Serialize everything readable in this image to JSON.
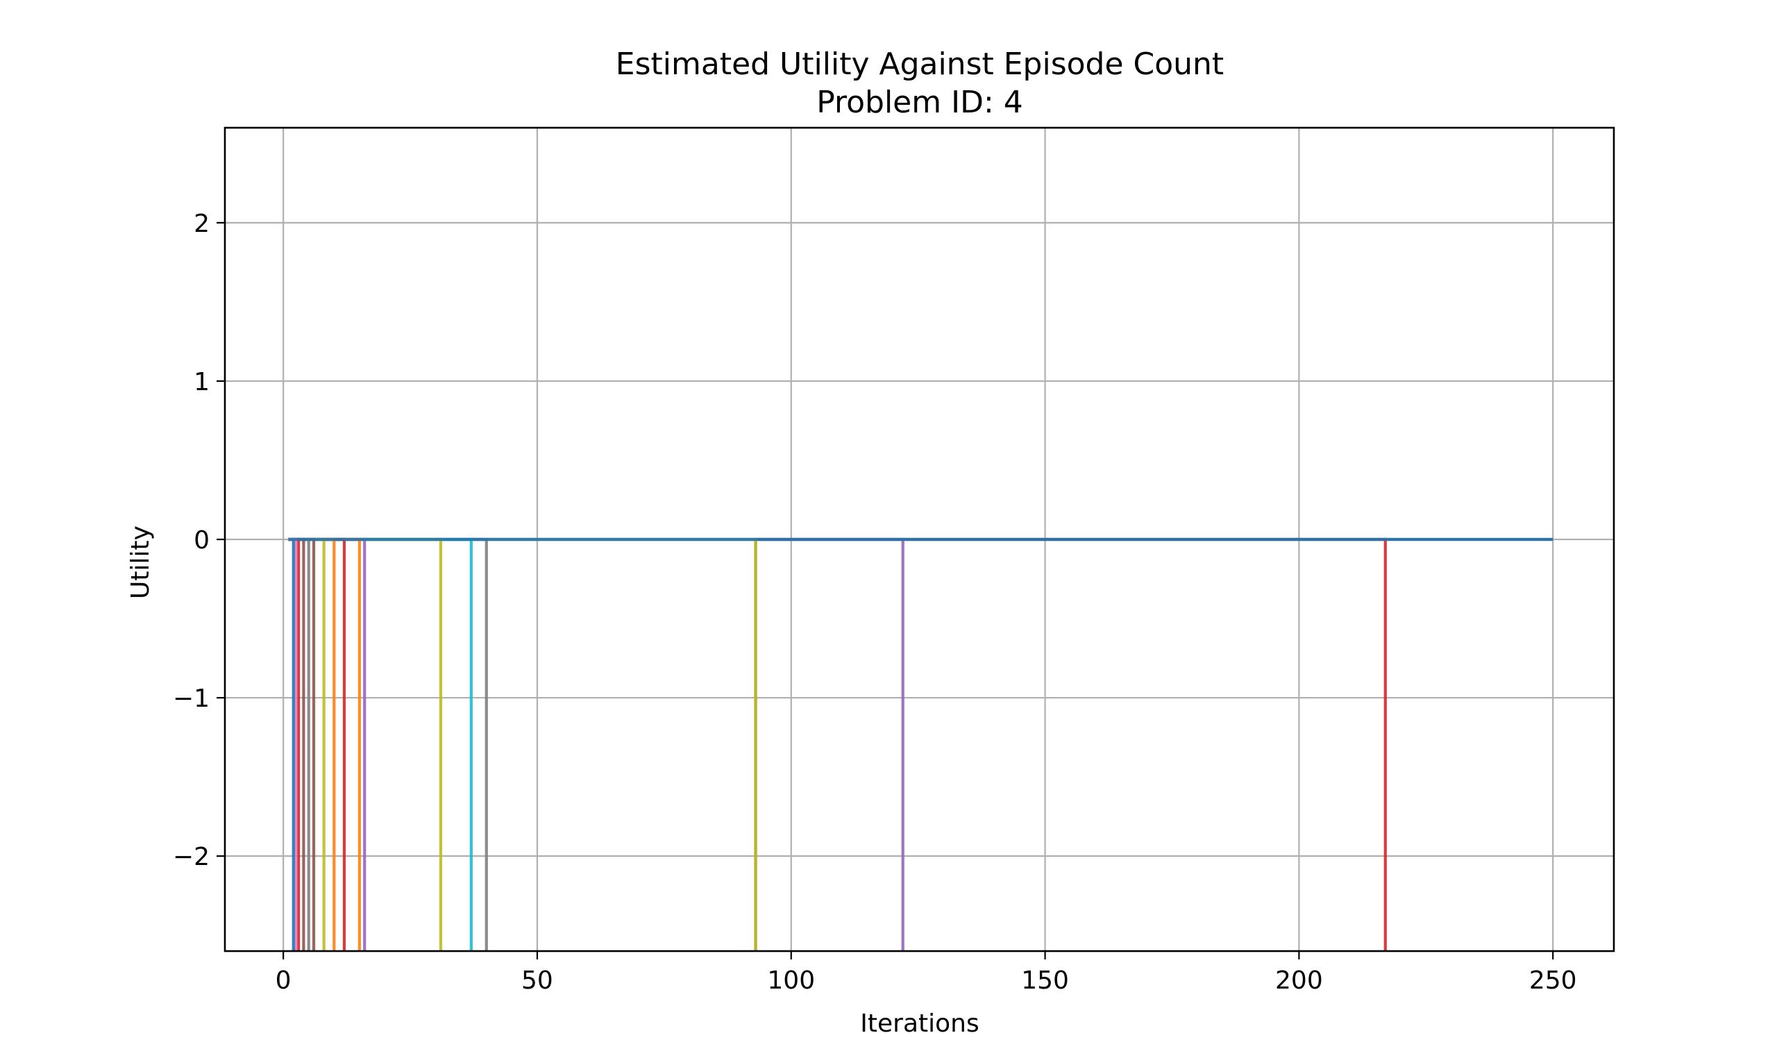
{
  "chart_data": {
    "type": "line",
    "title": "Estimated Utility Against Episode Count",
    "subtitle": "Problem ID: 4",
    "xlabel": "Iterations",
    "ylabel": "Utility",
    "xlim": [
      -11.5,
      262
    ],
    "ylim": [
      -2.6,
      2.6
    ],
    "xticks": [
      0,
      50,
      100,
      150,
      200,
      250
    ],
    "yticks": [
      -2,
      -1,
      0,
      1,
      2
    ],
    "xtick_labels": [
      "0",
      "50",
      "100",
      "150",
      "200",
      "250"
    ],
    "ytick_labels": [
      "−2",
      "−1",
      "0",
      "1",
      "2"
    ],
    "grid": true,
    "legend": "none",
    "series": [
      {
        "color": "#1f77b4",
        "drop_x": 2,
        "x": [
          1,
          2,
          250
        ],
        "y": [
          0,
          -2.6,
          0
        ]
      },
      {
        "color": "#e377c2",
        "drop_x": 2.5,
        "x": [
          1,
          2.5
        ],
        "y": [
          0,
          -2.6
        ]
      },
      {
        "color": "#d62728",
        "drop_x": 3,
        "x": [
          1,
          3
        ],
        "y": [
          0,
          -2.6
        ]
      },
      {
        "color": "#8c564b",
        "drop_x": 4,
        "x": [
          1,
          4
        ],
        "y": [
          0,
          -2.6
        ]
      },
      {
        "color": "#7f7f7f",
        "drop_x": 5,
        "x": [
          1,
          5
        ],
        "y": [
          0,
          -2.6
        ]
      },
      {
        "color": "#8c564b",
        "drop_x": 6,
        "x": [
          1,
          6
        ],
        "y": [
          0,
          -2.6
        ]
      },
      {
        "color": "#bcbd22",
        "drop_x": 8,
        "x": [
          1,
          8
        ],
        "y": [
          0,
          -2.6
        ]
      },
      {
        "color": "#ff7f0e",
        "drop_x": 10,
        "x": [
          1,
          10
        ],
        "y": [
          0,
          -2.6
        ]
      },
      {
        "color": "#d62728",
        "drop_x": 12,
        "x": [
          1,
          12
        ],
        "y": [
          0,
          -2.6
        ]
      },
      {
        "color": "#ff7f0e",
        "drop_x": 15,
        "x": [
          1,
          15
        ],
        "y": [
          0,
          -2.6
        ]
      },
      {
        "color": "#9467bd",
        "drop_x": 16,
        "x": [
          1,
          16
        ],
        "y": [
          0,
          -2.6
        ]
      },
      {
        "color": "#bcbd22",
        "drop_x": 31,
        "x": [
          1,
          31
        ],
        "y": [
          0,
          -2.6
        ]
      },
      {
        "color": "#17becf",
        "drop_x": 37,
        "x": [
          1,
          37
        ],
        "y": [
          0,
          -2.6
        ]
      },
      {
        "color": "#7f7f7f",
        "drop_x": 40,
        "x": [
          1,
          40
        ],
        "y": [
          0,
          -2.6
        ]
      },
      {
        "color": "#bcbd22",
        "drop_x": 93,
        "x": [
          1,
          93
        ],
        "y": [
          0,
          -2.6
        ]
      },
      {
        "color": "#8c564b",
        "drop_x": 93,
        "x": [
          93,
          250
        ],
        "y": [
          -2.6,
          0
        ]
      },
      {
        "color": "#9467bd",
        "drop_x": 122,
        "x": [
          1,
          122
        ],
        "y": [
          0,
          -2.6
        ]
      },
      {
        "color": "#d62728",
        "drop_x": 217,
        "x": [
          1,
          217
        ],
        "y": [
          0,
          -2.6
        ]
      }
    ]
  }
}
